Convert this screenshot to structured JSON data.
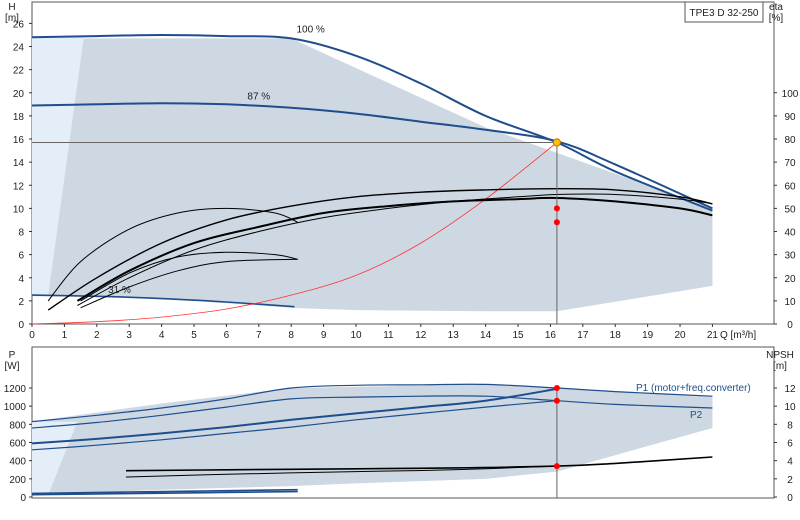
{
  "model_label": "TPE3 D 32-250",
  "colors": {
    "area_fill": "#cdd8e3",
    "light_area_fill": "#e4eef8",
    "curve_blue": "#1f4e8c",
    "efficiency_black": "#000000",
    "system_curve_red": "#ff3333",
    "duty_point_fill": "#ffc000",
    "point_red": "#ff0000",
    "grid": "#666666"
  },
  "chart_data": [
    {
      "type": "line",
      "panel": "top",
      "title": "",
      "y_left_label": [
        "H",
        "[m]"
      ],
      "y_right_label": [
        "eta",
        "[%]"
      ],
      "x_label": "Q [m³/h]",
      "xlim": [
        0,
        21
      ],
      "ylim_left": [
        0,
        26
      ],
      "ylim_right": [
        0,
        100
      ],
      "x_ticks": [
        "0",
        "1",
        "2",
        "3",
        "4",
        "5",
        "6",
        "7",
        "8",
        "9",
        "10",
        "11",
        "12",
        "13",
        "14",
        "15",
        "16",
        "17",
        "18",
        "19",
        "20",
        "21"
      ],
      "y_left_ticks": [
        "0",
        "2",
        "4",
        "6",
        "8",
        "10",
        "12",
        "14",
        "16",
        "18",
        "20",
        "22",
        "24",
        "26"
      ],
      "y_right_ticks": [
        "0",
        "10",
        "20",
        "30",
        "40",
        "50",
        "60",
        "70",
        "80",
        "90",
        "100"
      ],
      "operating_range_Q": [
        0,
        0,
        1.5,
        4,
        8,
        10,
        14,
        16.2,
        21,
        21,
        14,
        8,
        0.5
      ],
      "operating_range_H": [
        24.8,
        2.4,
        2.4,
        2.2,
        1.4,
        1.2,
        1.1,
        1.1,
        3.3,
        10.0,
        17.0,
        24.7,
        24.7
      ],
      "series": [
        {
          "name": "100 %",
          "curve": "head",
          "x": [
            0,
            2,
            4,
            6,
            8,
            10,
            12,
            14,
            16.2,
            18,
            21
          ],
          "y": [
            24.8,
            24.9,
            25.0,
            24.9,
            24.7,
            23.2,
            20.8,
            18.0,
            15.7,
            13.2,
            9.8
          ]
        },
        {
          "name": "87 %",
          "curve": "head",
          "x": [
            0,
            2,
            4,
            6,
            8,
            10,
            12,
            14,
            16.2,
            18,
            21
          ],
          "y": [
            18.9,
            19.0,
            19.1,
            19.0,
            18.7,
            18.2,
            17.5,
            16.8,
            15.8,
            13.8,
            10.0
          ]
        },
        {
          "name": "31 %",
          "curve": "head",
          "x": [
            0,
            2,
            4,
            6,
            8.1
          ],
          "y": [
            2.5,
            2.4,
            2.2,
            1.9,
            1.5
          ]
        },
        {
          "name": "",
          "curve": "system",
          "x": [
            0,
            2,
            4,
            6,
            8,
            10,
            12,
            14,
            16.2
          ],
          "y": [
            0,
            0.2,
            0.6,
            1.3,
            2.5,
            4.2,
            7.0,
            10.8,
            15.7
          ]
        },
        {
          "name": "",
          "curve": "efficiency",
          "x": [
            0.5,
            2,
            4,
            6,
            8,
            10,
            12,
            14,
            16.2,
            18,
            20,
            21
          ],
          "y": [
            6,
            20,
            35,
            45,
            51,
            55,
            57,
            58,
            58.5,
            58,
            55,
            52
          ]
        },
        {
          "name": "",
          "curve": "efficiency",
          "x": [
            1.4,
            3,
            5,
            7,
            9,
            11,
            13,
            15,
            16.2,
            18,
            20,
            21
          ],
          "y": [
            8,
            20,
            32,
            40,
            46,
            50,
            53,
            55,
            56,
            56,
            54,
            52
          ]
        },
        {
          "name": "",
          "curve": "efficiency",
          "x": [
            1.4,
            3,
            5,
            7,
            9,
            11,
            13,
            15,
            16.2,
            18,
            20,
            21
          ],
          "y": [
            10,
            23,
            35,
            42,
            48,
            51,
            53,
            54,
            54.5,
            53,
            50,
            47
          ]
        },
        {
          "name": "",
          "curve": "efficiency",
          "x": [
            0.5,
            1.5,
            3,
            4.5,
            6,
            7.5,
            8.2
          ],
          "y": [
            10,
            27,
            41,
            48,
            50,
            48,
            44
          ]
        },
        {
          "name": "",
          "curve": "efficiency",
          "x": [
            1.5,
            3,
            4.5,
            6,
            7.5,
            8.2
          ],
          "y": [
            10,
            22,
            29,
            31,
            30,
            28
          ]
        },
        {
          "name": "",
          "curve": "efficiency",
          "x": [
            1.5,
            3,
            4.5,
            6,
            8.2
          ],
          "y": [
            7,
            16,
            23,
            27,
            28
          ]
        }
      ],
      "duty_point": {
        "x": 16.2,
        "y": 15.7
      },
      "efficiency_points": [
        {
          "x": 16.2,
          "y": 50
        },
        {
          "x": 16.2,
          "y": 44
        }
      ],
      "grid": true
    },
    {
      "type": "line",
      "panel": "bottom",
      "title": "",
      "y_left_label": [
        "P",
        "[W]"
      ],
      "y_right_label": [
        "NPSH",
        "[m]"
      ],
      "xlim": [
        0,
        21
      ],
      "ylim_left": [
        0,
        1400
      ],
      "ylim_right": [
        0,
        14
      ],
      "y_left_ticks": [
        "0",
        "200",
        "400",
        "600",
        "800",
        "1000",
        "1200"
      ],
      "y_right_ticks": [
        "0",
        "2",
        "4",
        "6",
        "8",
        "10",
        "12"
      ],
      "operating_range_Q": [
        0,
        0,
        1.5,
        4,
        8,
        10,
        14,
        16.2,
        21,
        21,
        18,
        14,
        8,
        4,
        0
      ],
      "operating_range_P": [
        830,
        20,
        40,
        80,
        120,
        150,
        200,
        280,
        760,
        1110,
        1160,
        1240,
        1200,
        1030,
        830
      ],
      "series": [
        {
          "name": "P1 (motor+freq.converter)",
          "curve": "power",
          "x": [
            0,
            2,
            4,
            6,
            8,
            10,
            12,
            14,
            16.2,
            18,
            21
          ],
          "y": [
            830,
            900,
            980,
            1080,
            1200,
            1230,
            1235,
            1240,
            1200,
            1160,
            1110
          ]
        },
        {
          "name": "P2",
          "curve": "power",
          "x": [
            0,
            2,
            4,
            6,
            8,
            10,
            12,
            14,
            16.2,
            18,
            21
          ],
          "y": [
            760,
            820,
            900,
            990,
            1080,
            1100,
            1110,
            1110,
            1060,
            1020,
            980
          ]
        },
        {
          "name": "",
          "curve": "power",
          "x": [
            0,
            2,
            4,
            6,
            8,
            10,
            12,
            14,
            16.2
          ],
          "y": [
            590,
            640,
            700,
            770,
            850,
            920,
            990,
            1060,
            1190
          ]
        },
        {
          "name": "",
          "curve": "power",
          "x": [
            0,
            2,
            4,
            6,
            8,
            10,
            12,
            14,
            16.2
          ],
          "y": [
            520,
            570,
            630,
            700,
            770,
            850,
            920,
            990,
            1060
          ]
        },
        {
          "name": "",
          "curve": "power_low",
          "x": [
            0,
            8.2
          ],
          "y": [
            40,
            80
          ]
        },
        {
          "name": "",
          "curve": "power_low",
          "x": [
            0,
            8.2
          ],
          "y": [
            25,
            60
          ]
        },
        {
          "name": "",
          "curve": "npsh",
          "x": [
            2.9,
            6,
            10,
            13,
            16.2,
            18,
            21
          ],
          "y": [
            2.9,
            3.0,
            3.1,
            3.2,
            3.4,
            3.7,
            4.4
          ]
        },
        {
          "name": "",
          "curve": "npsh",
          "x": [
            2.9,
            6,
            10,
            13,
            16.2
          ],
          "y": [
            2.2,
            2.5,
            2.8,
            3.0,
            3.4
          ]
        }
      ],
      "points": [
        {
          "x": 16.2,
          "y": 1200
        },
        {
          "x": 16.2,
          "y": 1060
        },
        {
          "x": 16.2,
          "y": 340
        }
      ],
      "grid": false
    }
  ]
}
